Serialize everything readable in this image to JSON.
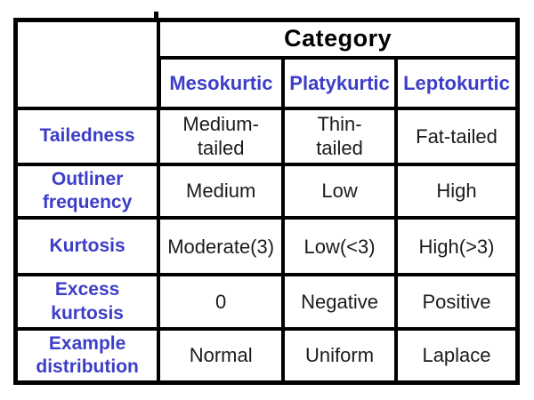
{
  "table": {
    "corner_label": "",
    "category_header": "Category",
    "columns": [
      "Mesokurtic",
      "Platykurtic",
      "Leptokurtic"
    ],
    "rows": [
      {
        "label": "Tailedness",
        "values": [
          "Medium-\ntailed",
          "Thin-\ntailed",
          "Fat-tailed"
        ]
      },
      {
        "label": "Outliner\nfrequency",
        "values": [
          "Medium",
          "Low",
          "High"
        ]
      },
      {
        "label": "Kurtosis",
        "values": [
          "Moderate(3)",
          "Low(<3)",
          "High(>3)"
        ]
      },
      {
        "label": "Excess\nkurtosis",
        "values": [
          "0",
          "Negative",
          "Positive"
        ]
      },
      {
        "label": "Example\ndistribution",
        "values": [
          "Normal",
          "Uniform",
          "Laplace"
        ]
      }
    ]
  },
  "colors": {
    "header_text": "#3c3ec8",
    "row_label_text": "#3c3ec8",
    "data_text": "#1b1b1b",
    "border": "#000000",
    "background": "#ffffff"
  }
}
